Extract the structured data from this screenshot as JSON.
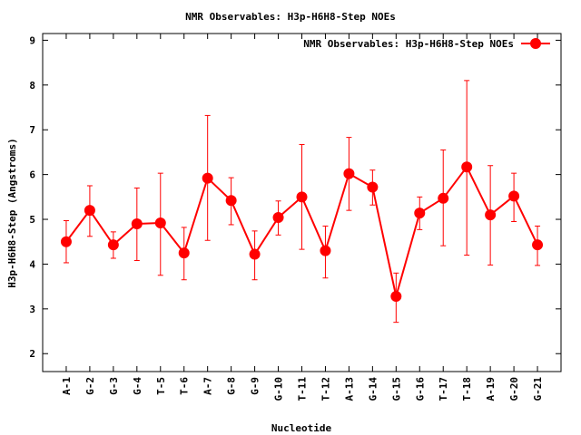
{
  "chart_data": {
    "type": "line",
    "title": "NMR Observables: H3p-H6H8-Step NOEs",
    "xlabel": "Nucleotide",
    "ylabel": "H3p-H6H8-Step (Angstroms)",
    "ylim": [
      1.6,
      9.15
    ],
    "yticks": [
      2,
      3,
      4,
      5,
      6,
      7,
      8,
      9
    ],
    "grid": false,
    "legend_position": "top-right",
    "series_color": "#ff0000",
    "categories": [
      "A-1",
      "G-2",
      "G-3",
      "G-4",
      "T-5",
      "T-6",
      "A-7",
      "G-8",
      "G-9",
      "G-10",
      "T-11",
      "T-12",
      "A-13",
      "G-14",
      "G-15",
      "G-16",
      "T-17",
      "T-18",
      "A-19",
      "G-20",
      "G-21"
    ],
    "series": [
      {
        "name": "NMR Observables: H3p-H6H8-Step NOEs",
        "values": [
          4.5,
          5.2,
          4.43,
          4.9,
          4.92,
          4.25,
          5.92,
          5.42,
          4.22,
          5.04,
          5.5,
          4.3,
          6.02,
          5.72,
          3.28,
          5.14,
          5.47,
          6.17,
          5.1,
          5.52,
          4.43
        ],
        "err_low": [
          4.03,
          4.62,
          4.13,
          4.08,
          3.75,
          3.65,
          4.53,
          4.88,
          3.65,
          4.65,
          4.33,
          3.69,
          5.2,
          5.32,
          2.7,
          4.77,
          4.41,
          4.2,
          3.98,
          4.95,
          3.97
        ],
        "err_high": [
          4.97,
          5.75,
          4.72,
          5.7,
          6.03,
          4.82,
          7.32,
          5.93,
          4.74,
          5.41,
          6.67,
          4.85,
          6.83,
          6.1,
          3.8,
          5.5,
          6.55,
          8.1,
          6.2,
          6.03,
          4.85
        ]
      }
    ]
  }
}
